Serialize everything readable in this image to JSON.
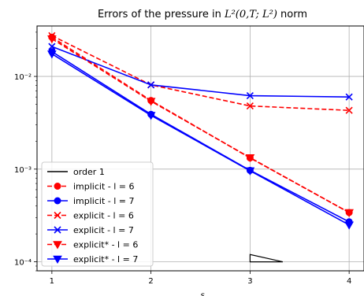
{
  "chart_data": {
    "type": "line",
    "title_prefix": "Errors of the pressure in ",
    "title_math": "L²(0,T; L²)",
    "title_suffix": " norm",
    "xlabel": "s",
    "ylabel": "",
    "x_scale": "linear",
    "y_scale": "log",
    "xlim": [
      0.85,
      4.15
    ],
    "ylim": [
      8e-05,
      0.035
    ],
    "x_ticks": [
      1,
      2,
      3,
      4
    ],
    "y_ticks": [
      {
        "value": 0.01,
        "label": "10⁻²"
      },
      {
        "value": 0.001,
        "label": "10⁻³"
      },
      {
        "value": 0.0001,
        "label": "10⁻⁴"
      }
    ],
    "grid": true,
    "legend_position": "lower-left",
    "series": [
      {
        "name": "implicit - l = 6",
        "color": "#ff0000",
        "linestyle": "dashed",
        "marker": "circle",
        "x": [
          1,
          2,
          3,
          4
        ],
        "y": [
          0.0265,
          0.0055,
          0.00132,
          0.00034
        ]
      },
      {
        "name": "implicit - l = 7",
        "color": "#0000ff",
        "linestyle": "solid",
        "marker": "circle",
        "x": [
          1,
          2,
          3,
          4
        ],
        "y": [
          0.0185,
          0.0039,
          0.00097,
          0.00027
        ]
      },
      {
        "name": "explicit - l = 6",
        "color": "#ff0000",
        "linestyle": "dashed",
        "marker": "x",
        "x": [
          1,
          2,
          3,
          4
        ],
        "y": [
          0.0275,
          0.0081,
          0.0048,
          0.0043
        ]
      },
      {
        "name": "explicit - l = 7",
        "color": "#0000ff",
        "linestyle": "solid",
        "marker": "x",
        "x": [
          1,
          2,
          3,
          4
        ],
        "y": [
          0.021,
          0.0081,
          0.0062,
          0.006
        ]
      },
      {
        "name": "explicit* - l = 6",
        "color": "#ff0000",
        "linestyle": "dashed",
        "marker": "triangle-down",
        "x": [
          1,
          2,
          3,
          4
        ],
        "y": [
          0.0255,
          0.0054,
          0.00133,
          0.00034
        ]
      },
      {
        "name": "explicit* - l = 7",
        "color": "#0000ff",
        "linestyle": "solid",
        "marker": "triangle-down",
        "x": [
          1,
          2,
          3,
          4
        ],
        "y": [
          0.0175,
          0.0038,
          0.00096,
          0.00025
        ]
      }
    ],
    "reference": {
      "name": "order 1",
      "color": "#000000",
      "x": [
        3,
        3.33
      ],
      "y": [
        0.00012,
        0.0001
      ]
    }
  }
}
